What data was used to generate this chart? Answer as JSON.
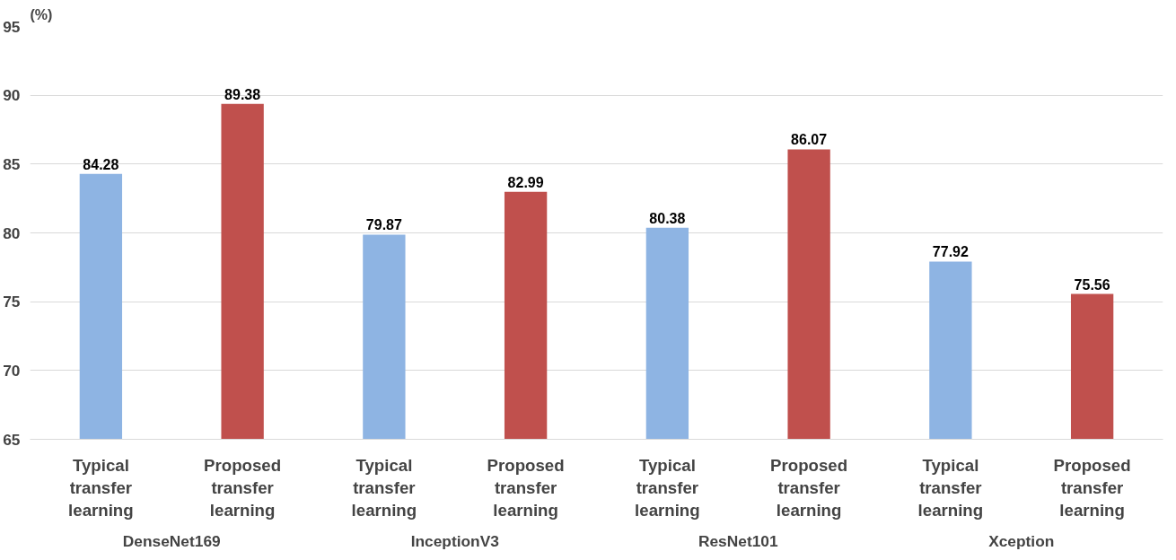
{
  "chart_data": {
    "type": "bar",
    "ylabel": "(%)",
    "categories": [
      "Typical transfer learning",
      "Proposed transfer learning",
      "Typical transfer learning",
      "Proposed transfer learning",
      "Typical transfer learning",
      "Proposed transfer learning",
      "Typical transfer learning",
      "Proposed transfer learning"
    ],
    "values": [
      84.28,
      89.38,
      79.87,
      82.99,
      80.38,
      86.07,
      77.92,
      75.56
    ],
    "colors": [
      "#8eb4e3",
      "#c0504d",
      "#8eb4e3",
      "#c0504d",
      "#8eb4e3",
      "#c0504d",
      "#8eb4e3",
      "#c0504d"
    ],
    "annotations": [
      "DenseNet169",
      "InceptionV3",
      "ResNet101",
      "Xception"
    ],
    "ylim": [
      65,
      95
    ],
    "yticks": [
      65,
      70,
      75,
      80,
      85,
      90,
      95
    ],
    "grid": "y",
    "data_labels": true
  }
}
